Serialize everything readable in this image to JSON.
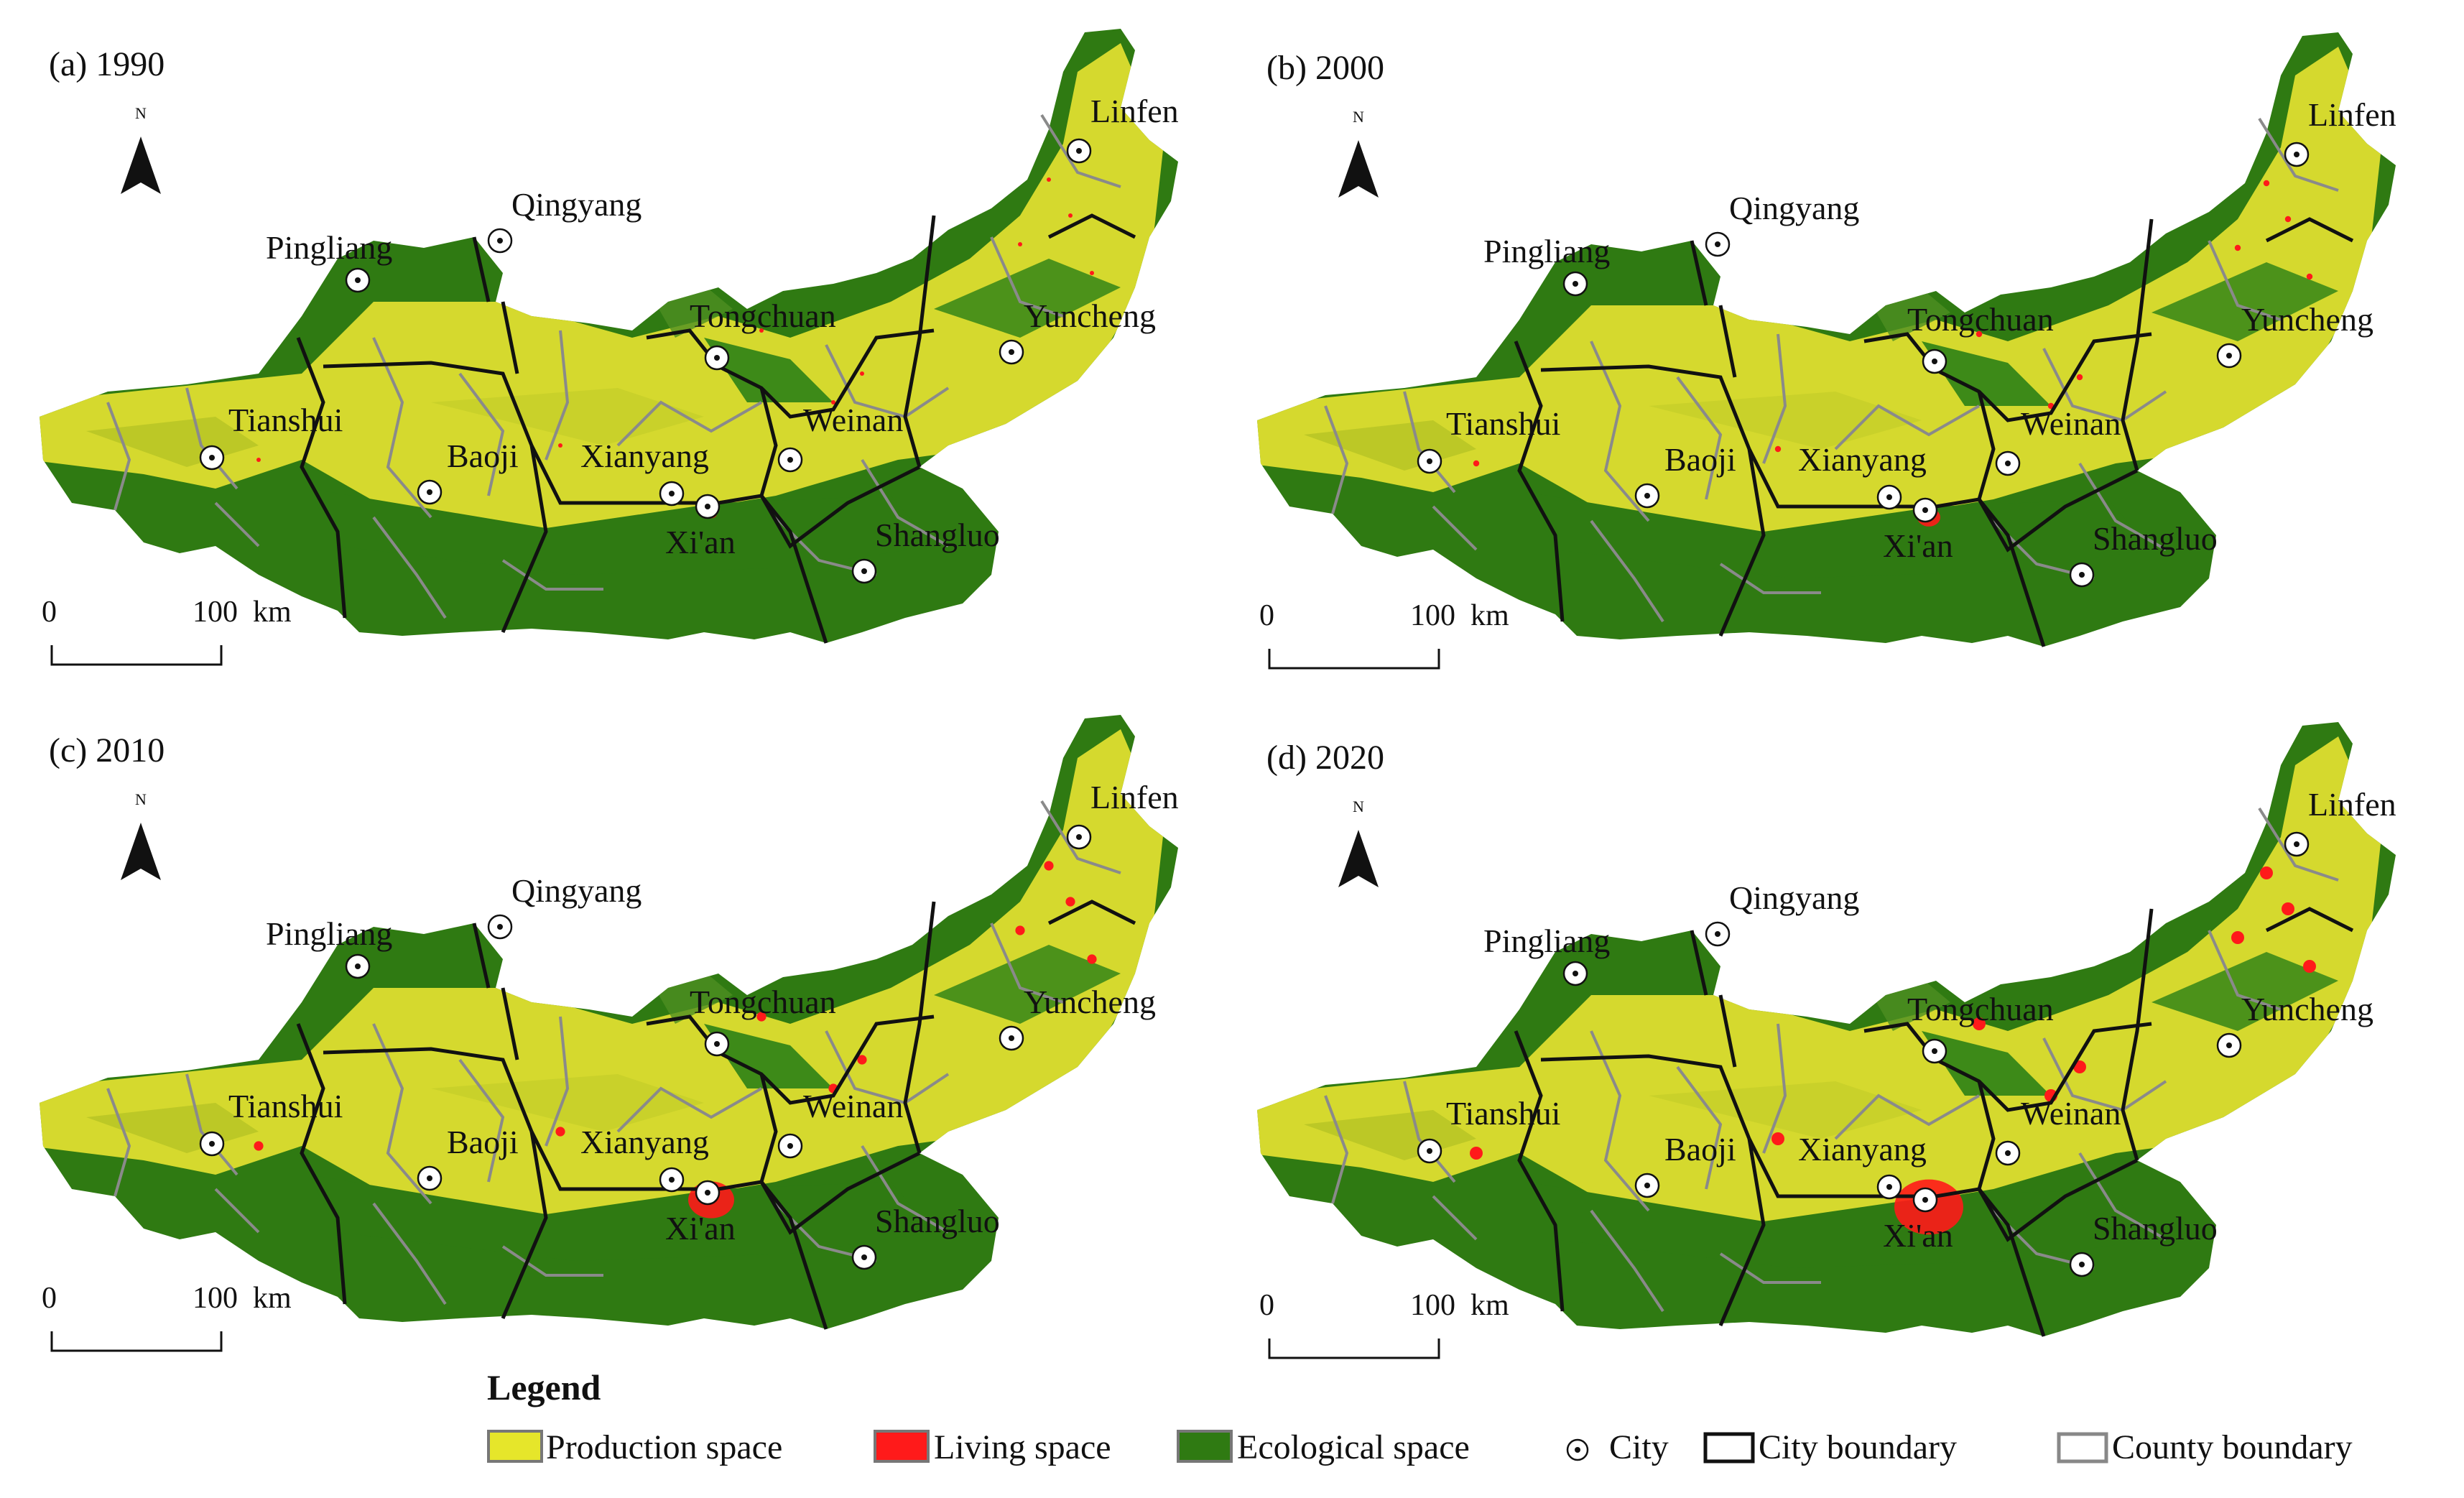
{
  "legend": {
    "title": "Legend",
    "items": [
      {
        "label": "Production space",
        "color": "#e6e62a"
      },
      {
        "label": "Living space",
        "color": "#ff1a1a"
      },
      {
        "label": "Ecological space",
        "color": "#2f7a12"
      },
      {
        "label": "City",
        "icon": "city-dot-icon"
      },
      {
        "label": "City boundary",
        "icon": "black-outline-box"
      },
      {
        "label": "County boundary",
        "icon": "gray-outline-box"
      }
    ]
  },
  "north_letter": "N",
  "scale": {
    "zero": "0",
    "distance": "100",
    "unit": "km"
  },
  "panels": [
    {
      "label": "(a) 1990"
    },
    {
      "label": "(b) 2000"
    },
    {
      "label": "(c) 2010"
    },
    {
      "label": "(d) 2020"
    }
  ],
  "cities": [
    "Linfen",
    "Qingyang",
    "Pingliang",
    "Tongchuan",
    "Yuncheng",
    "Tianshui",
    "Weinan",
    "Baoji",
    "Xianyang",
    "Xi'an",
    "Shangluo"
  ],
  "colors": {
    "production": "#e6e62a",
    "living": "#ff1a1a",
    "ecological": "#2f7a12",
    "city_boundary": "#111111",
    "county_boundary": "#8a8a8a"
  }
}
